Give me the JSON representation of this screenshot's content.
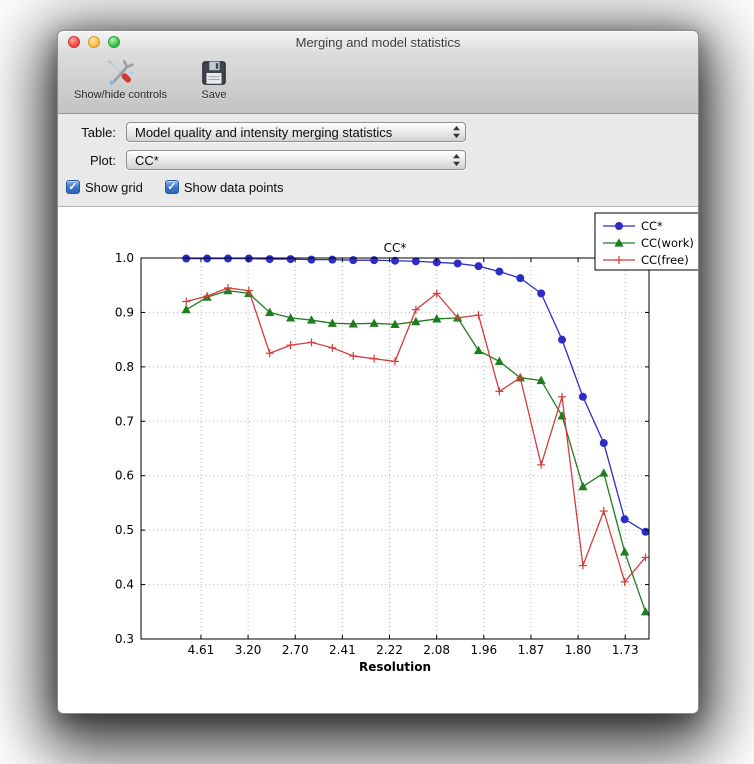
{
  "window": {
    "title": "Merging and model statistics"
  },
  "toolbar": {
    "items": [
      {
        "label": "Show/hide controls",
        "icon": "tools-icon"
      },
      {
        "label": "Save",
        "icon": "save-icon"
      }
    ]
  },
  "controls": {
    "table_label": "Table:",
    "table_value": "Model quality and intensity merging statistics",
    "plot_label": "Plot:",
    "plot_value": "CC*",
    "show_grid_label": "Show grid",
    "show_points_label": "Show data points",
    "show_grid_checked": true,
    "show_points_checked": true,
    "check_glyph": "✓"
  },
  "chart_data": {
    "type": "line",
    "title": "CC*",
    "xlabel": "Resolution",
    "ylabel": "",
    "ylim": [
      0.3,
      1.0
    ],
    "y_ticks": [
      0.3,
      0.4,
      0.5,
      0.6,
      0.7,
      0.8,
      0.9,
      1.0
    ],
    "x_tick_labels": [
      "4.61",
      "3.20",
      "2.70",
      "2.41",
      "2.22",
      "2.08",
      "1.96",
      "1.87",
      "1.80",
      "1.73"
    ],
    "grid": true,
    "show_markers": true,
    "legend_position": "upper right",
    "x_layout": {
      "start": 0.089,
      "step": 0.0411,
      "tick_start": 0.118,
      "tick_step": 0.0928
    },
    "series": [
      {
        "name": "CC*",
        "color": "#2c2cc8",
        "marker": "circle",
        "values": [
          0.999,
          0.999,
          0.999,
          0.999,
          0.998,
          0.998,
          0.997,
          0.997,
          0.996,
          0.996,
          0.995,
          0.994,
          0.992,
          0.99,
          0.985,
          0.975,
          0.963,
          0.935,
          0.85,
          0.745,
          0.66,
          0.52,
          0.497
        ]
      },
      {
        "name": "CC(work)",
        "color": "#1e7d1e",
        "marker": "triangle",
        "values": [
          0.905,
          0.928,
          0.94,
          0.935,
          0.9,
          0.89,
          0.886,
          0.88,
          0.879,
          0.88,
          0.878,
          0.883,
          0.888,
          0.89,
          0.83,
          0.81,
          0.78,
          0.775,
          0.71,
          0.58,
          0.605,
          0.46,
          0.35
        ]
      },
      {
        "name": "CC(free)",
        "color": "#d43c3c",
        "marker": "plus",
        "values": [
          0.92,
          0.93,
          0.945,
          0.94,
          0.825,
          0.84,
          0.845,
          0.835,
          0.82,
          0.815,
          0.81,
          0.905,
          0.935,
          0.89,
          0.895,
          0.755,
          0.78,
          0.62,
          0.745,
          0.435,
          0.535,
          0.405,
          0.45
        ]
      }
    ]
  }
}
